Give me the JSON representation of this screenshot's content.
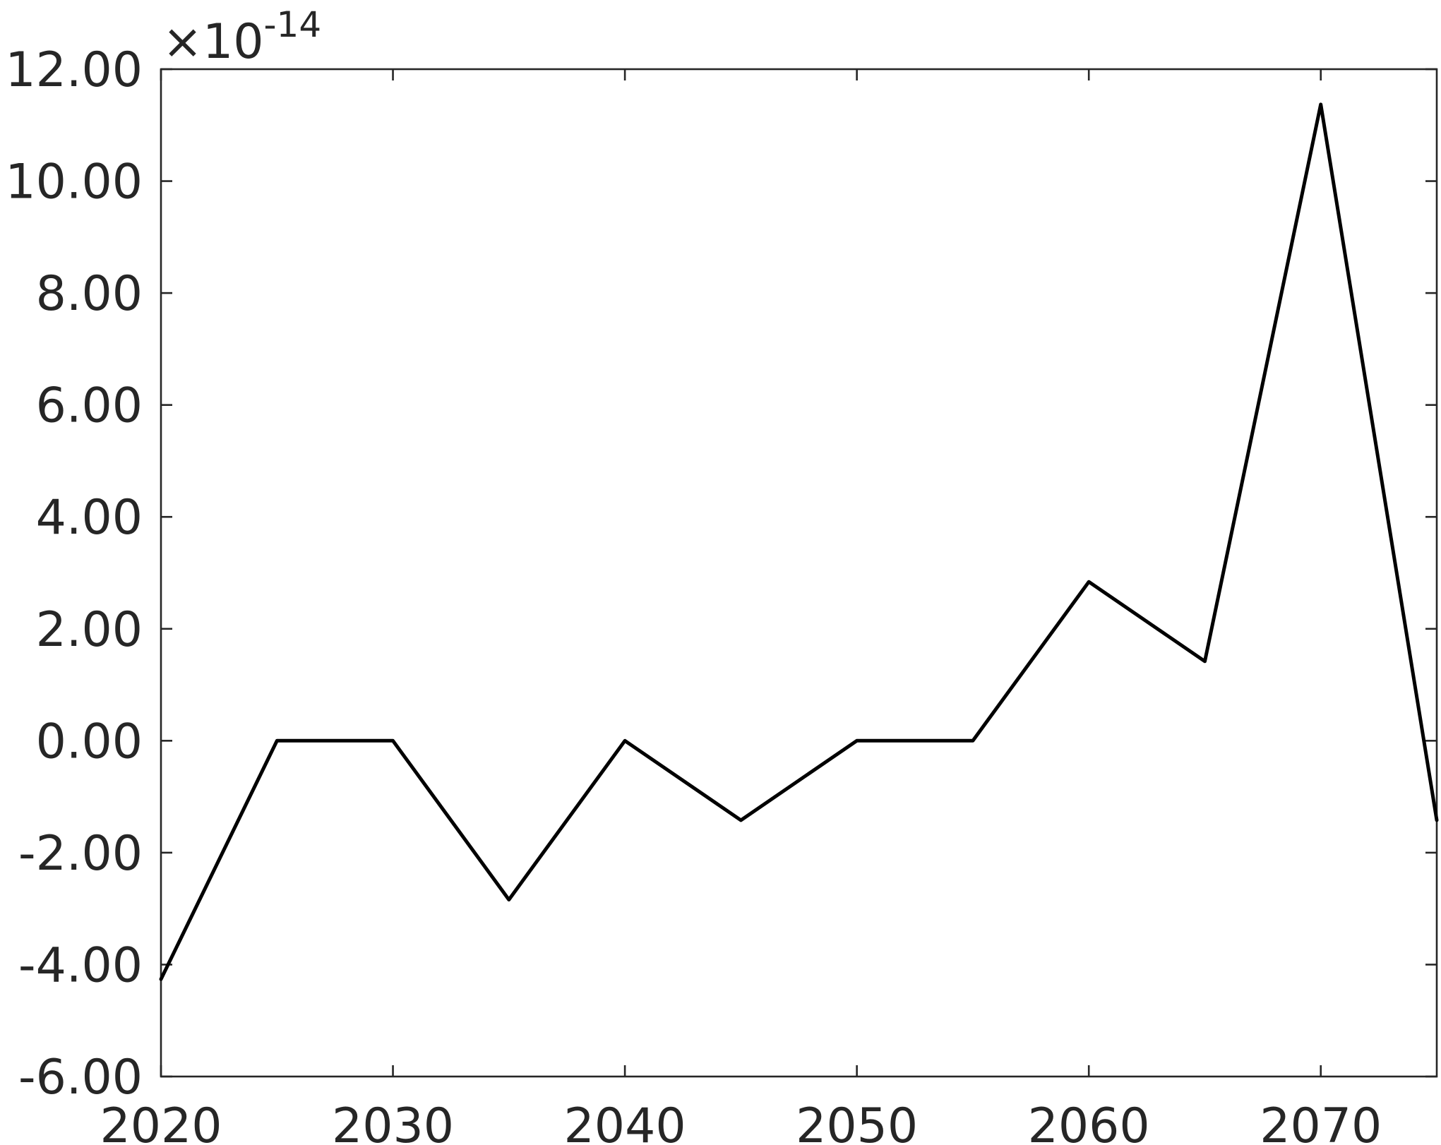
{
  "chart_data": {
    "type": "line",
    "title": "",
    "xlabel": "",
    "ylabel": "",
    "y_exponent_label": {
      "prefix": "×10",
      "power": "-14"
    },
    "xlim": [
      2020,
      2075
    ],
    "ylim": [
      -6,
      12
    ],
    "x_ticks": [
      2020,
      2030,
      2040,
      2050,
      2060,
      2070
    ],
    "x_tick_labels": [
      "2020",
      "2030",
      "2040",
      "2050",
      "2060",
      "2070"
    ],
    "y_ticks": [
      -6,
      -4,
      -2,
      0,
      2,
      4,
      6,
      8,
      10,
      12
    ],
    "y_tick_labels": [
      "-6.00",
      "-4.00",
      "-2.00",
      "0.00",
      "2.00",
      "4.00",
      "6.00",
      "8.00",
      "10.00",
      "12.00"
    ],
    "grid": false,
    "series": [
      {
        "color": "#000000",
        "x": [
          2020,
          2025,
          2030,
          2035,
          2040,
          2045,
          2050,
          2055,
          2060,
          2065,
          2070,
          2075
        ],
        "values": [
          -4.26,
          0.0,
          0.0,
          -2.84,
          0.0,
          -1.42,
          0.0,
          0.0,
          2.84,
          1.42,
          11.37,
          -1.42
        ]
      }
    ],
    "colors": {
      "axis": "#262626",
      "line": "#000000",
      "background": "#ffffff"
    }
  }
}
